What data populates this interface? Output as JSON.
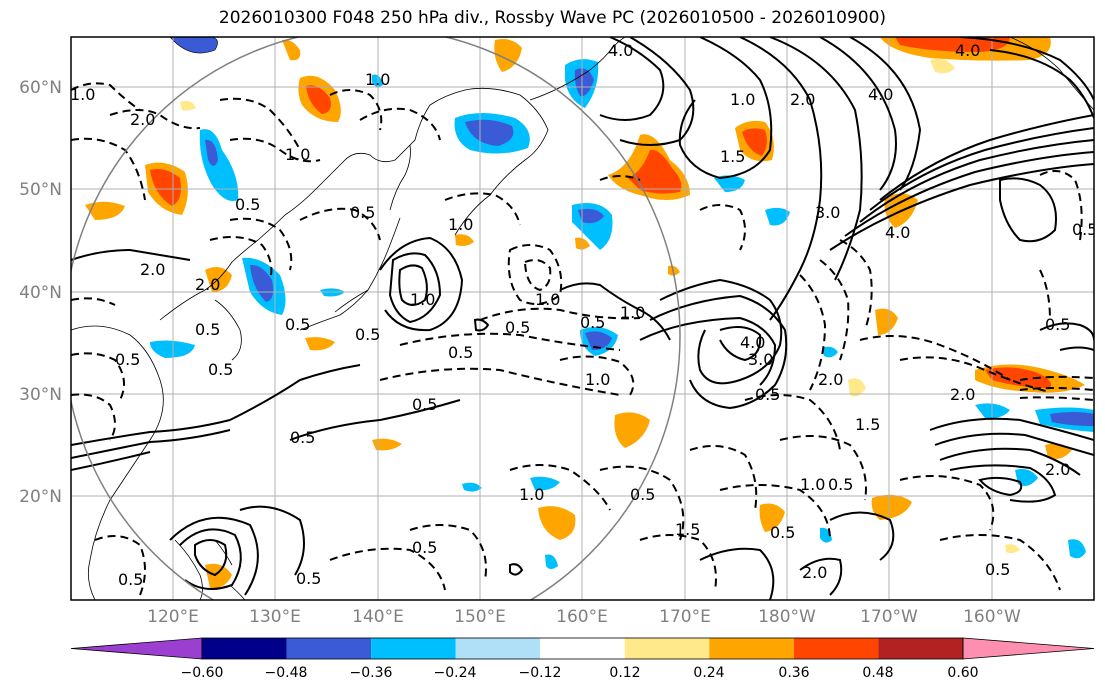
{
  "title": "2026010300 F048 250 hPa div., Rossby Wave PC (2026010500 - 2026010900)",
  "lat_labels": [
    "60°N",
    "50°N",
    "40°N",
    "30°N",
    "20°N"
  ],
  "lon_labels": [
    "120°E",
    "130°E",
    "140°E",
    "150°E",
    "160°E",
    "170°E",
    "180°W",
    "170°W",
    "160°W"
  ],
  "colorbar": {
    "ticks": [
      "−0.60",
      "−0.48",
      "−0.36",
      "−0.24",
      "−0.12",
      "0.12",
      "0.24",
      "0.36",
      "0.48",
      "0.60"
    ],
    "colors": [
      "#9b3fd0",
      "#00008b",
      "#3b5bd6",
      "#00bfff",
      "#afe0f8",
      "#ffffff",
      "#ffe98a",
      "#ffa500",
      "#ff4500",
      "#b22222",
      "#ff8fb0"
    ]
  },
  "contour_labels": [
    "4.0",
    "1.0",
    "2.0",
    "1.0",
    "2.0",
    "1.0",
    "0.5",
    "1.0",
    "2.0",
    "4.0",
    "1.5",
    "3.0",
    "0.5",
    "1.0",
    "1.0",
    "2.0",
    "0.5",
    "0.5",
    "0.5",
    "1.0",
    "0.5",
    "1.0",
    "0.5",
    "1.0",
    "0.5",
    "0.5",
    "4.0",
    "3.0",
    "0.5",
    "2.0",
    "1.5",
    "0.5",
    "0.5",
    "0.5",
    "1.0",
    "0.5",
    "1.0",
    "1.5",
    "2.0",
    "0.5",
    "0.5",
    "0.5",
    "0.5",
    "0.5",
    "0.5",
    "0.5",
    "2.0",
    "0.5",
    "4.0",
    "4.0",
    "2.0"
  ],
  "colors": {
    "contour": "#000000",
    "grid": "#b0b0b0",
    "circle": "#808080",
    "coast": "#000000"
  }
}
